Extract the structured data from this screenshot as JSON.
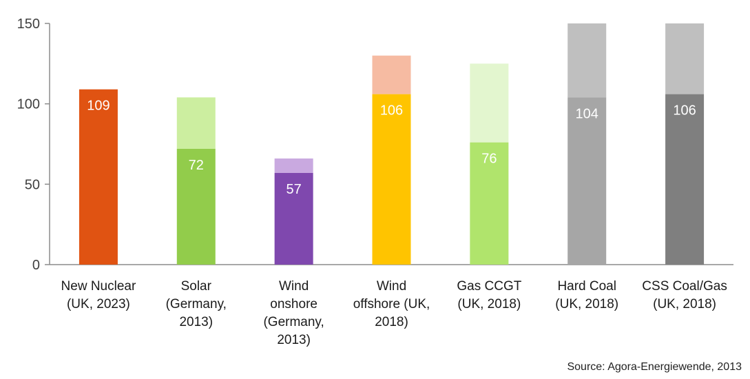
{
  "chart_data": {
    "type": "bar",
    "stacked": true,
    "categories": [
      [
        "New Nuclear",
        "(UK, 2023)"
      ],
      [
        "Solar",
        "(Germany,",
        "2013)"
      ],
      [
        "Wind",
        "onshore",
        "(Germany,",
        "2013)"
      ],
      [
        "Wind",
        "offshore (UK,",
        "2018)"
      ],
      [
        "Gas CCGT",
        "(UK, 2018)"
      ],
      [
        "Hard Coal",
        "(UK, 2018)"
      ],
      [
        "CSS Coal/Gas",
        "(UK, 2018)"
      ]
    ],
    "values": [
      109,
      72,
      57,
      106,
      76,
      104,
      106
    ],
    "range_top": [
      109,
      104,
      66,
      130,
      125,
      150,
      150
    ],
    "data_labels": [
      "109",
      "72",
      "57",
      "106",
      "76",
      "104",
      "106"
    ],
    "colors_base": [
      "#E05312",
      "#92CC4B",
      "#7F48AE",
      "#FFC400",
      "#B0E46C",
      "#A6A6A6",
      "#7F7F7F"
    ],
    "colors_top": [
      "#E05312",
      "#CCEEA0",
      "#C9A9E0",
      "#F6BBA2",
      "#E3F6CF",
      "#BFBFBF",
      "#BFBFBF"
    ],
    "ylim": [
      0,
      150
    ],
    "yticks": [
      0,
      50,
      100,
      150
    ],
    "grid": false,
    "title": "",
    "xlabel": "",
    "ylabel": ""
  },
  "source": "Source: Agora-Energiewende, 2013"
}
